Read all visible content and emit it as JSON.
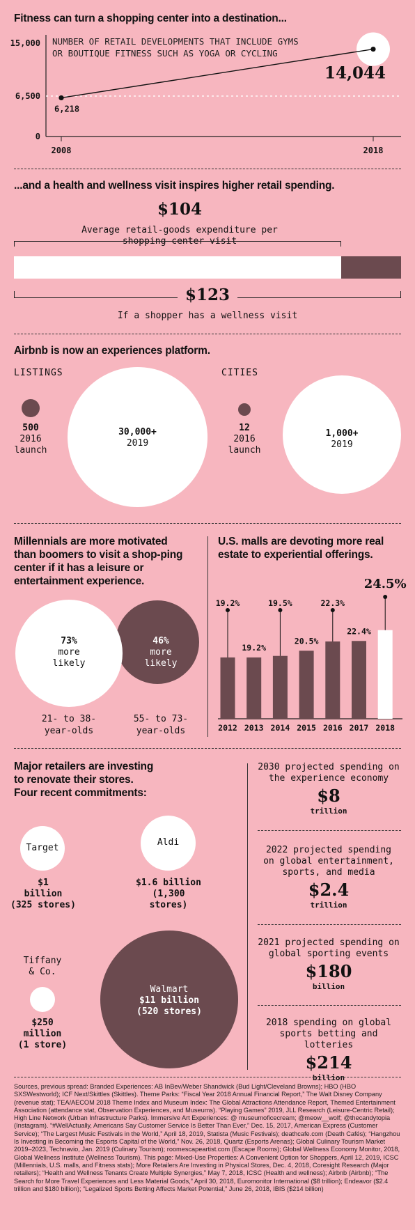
{
  "fitness": {
    "heading": "Fitness can turn a shopping center into a destination...",
    "chart_title_line1": "NUMBER OF RETAIL DEVELOPMENTS THAT INCLUDE GYMS",
    "chart_title_line2": "OR BOUTIQUE FITNESS SUCH AS YOGA OR CYCLING",
    "y_ticks": [
      "15,000",
      "6,500",
      "0"
    ],
    "x_ticks": [
      "2008",
      "2018"
    ],
    "start_label": "6,218",
    "end_label": "14,044"
  },
  "wellness": {
    "heading": "...and a health and wellness visit inspires higher retail spending.",
    "avg_value": "$104",
    "avg_caption_line1": "Average retail-goods expenditure per",
    "avg_caption_line2": "shopping center visit",
    "wellness_value": "$123",
    "wellness_caption": "If a shopper has a wellness visit"
  },
  "airbnb": {
    "heading": "Airbnb is now an experiences platform.",
    "listings_label": "LISTINGS",
    "cities_label": "CITIES",
    "listings_launch_value": "500",
    "listings_launch_year": "2016",
    "listings_launch_note": "launch",
    "listings_2019_value": "30,000+",
    "listings_2019_year": "2019",
    "cities_launch_value": "12",
    "cities_launch_year": "2016",
    "cities_launch_note": "launch",
    "cities_2019_value": "1,000+",
    "cities_2019_year": "2019"
  },
  "millennials": {
    "heading_line1": "Millennials are more motivated",
    "heading_line2": "than boomers to visit a shop-ping",
    "heading_line3": "center if it has a leisure or",
    "heading_line4": "entertainment experience.",
    "mill_pct": "73%",
    "mill_line2": "more",
    "mill_line3": "likely",
    "boom_pct": "46%",
    "boom_line2": "more",
    "boom_line3": "likely",
    "mill_age_line1": "21- to 38-",
    "mill_age_line2": "year-olds",
    "boom_age_line1": "55- to 73-",
    "boom_age_line2": "year-olds"
  },
  "malls": {
    "heading_line1": "U.S. malls are devoting more real",
    "heading_line2": "estate to experiential offerings."
  },
  "retailers": {
    "heading_line1": "Major retailers are investing",
    "heading_line2": "to renovate their stores.",
    "heading_line3": "Four recent commitments:",
    "target_name": "Target",
    "target_amount_line1": "$1",
    "target_amount_line2": "billion",
    "target_amount_line3": "(325 stores)",
    "aldi_name": "Aldi",
    "aldi_amount_line1": "$1.6 billion",
    "aldi_amount_line2": "(1,300",
    "aldi_amount_line3": "stores)",
    "tiffany_name_line1": "Tiffany",
    "tiffany_name_line2": "& Co.",
    "tiffany_amount_line1": "$250",
    "tiffany_amount_line2": "million",
    "tiffany_amount_line3": "(1 store)",
    "walmart_name": "Walmart",
    "walmart_amount_line1": "$11 billion",
    "walmart_amount_line2": "(520 stores)"
  },
  "spending": [
    {
      "caption_line1": "2030 projected spending on",
      "caption_line2": "the experience economy",
      "caption_line3": "",
      "value": "$8",
      "unit": "trillion"
    },
    {
      "caption_line1": "2022 projected spending",
      "caption_line2": "on global entertainment,",
      "caption_line3": "sports, and media",
      "value": "$2.4",
      "unit": "trillion"
    },
    {
      "caption_line1": "2021 projected spending on",
      "caption_line2": "global sporting events",
      "caption_line3": "",
      "value": "$180",
      "unit": "billion"
    },
    {
      "caption_line1": "2018 spending on global",
      "caption_line2": "sports betting and lotteries",
      "caption_line3": "",
      "value": "$214",
      "unit": "billion"
    }
  ],
  "sources": "Sources, previous spread: Branded Experiences: AB InBev/Weber Shandwick (Bud Light/Cleveland Browns); HBO (HBO SXSWestworld); ICF Next/Skittles (Skittles). Theme Parks: “Fiscal Year 2018 Annual Financial Report,” The Walt Disney Company (revenue stat); TEA/AECOM 2018 Theme Index and Museum Index: The Global Attractions Attendance Report, Themed Entertainment Association (attendance stat, Observation Experiences, and Museums). “Playing Games” 2019, JLL Research (Leisure-Centric Retail); High Line Network (Urban Infrastructure Parks). Immersive Art Experiences: @ museumoficecream; @meow__wolf; @thecandytopia (Instagram). “#WellActually, Americans Say Customer Service Is Better Than Ever,” Dec. 15, 2017, American Express (Customer Service); “The Largest Music Festivals in the World,” April 18, 2019, Statista (Music Festivals); deathcafe.com (Death Cafés); “Hangzhou Is Investing in Becoming the Esports Capital of the World,” Nov. 26, 2018, Quartz (Esports Arenas); Global Culinary Tourism Market 2019–2023, Technavio, Jan. 2019 (Culinary Tourism); roomescapeartist.com (Escape Rooms); Global Wellness Economy Monitor, 2018, Global Wellness Institute (Wellness Tourism). This page: Mixed-Use Properties: A Convenient Option for Shoppers, April 12, 2019, ICSC (Millennials, U.S. malls, and Fitness stats); More Retailers Are Investing in Physical Stores, Dec. 4, 2018, Coresight Research (Major retailers); “Health and Wellness Tenants Create Multiple Synergies,” May 7, 2018, ICSC (Health and wellness); Airbnb (Airbnb); “The Search for More Travel Experiences and Less Material Goods,” April 30, 2018, Euromonitor International ($8 trillion); Endeavor ($2.4 trillion and $180 billion); “Legalized Sports Betting Affects Market Potential,” June 26, 2018, IBIS ($214 billion)",
  "colors": {
    "background": "#f7b6bf",
    "dark": "#6b4a4f",
    "light": "#ffffff"
  },
  "chart_data": [
    {
      "type": "line",
      "title": "NUMBER OF RETAIL DEVELOPMENTS THAT INCLUDE GYMS OR BOUTIQUE FITNESS SUCH AS YOGA OR CYCLING",
      "x": [
        2008,
        2018
      ],
      "values": [
        6218,
        14044
      ],
      "ylim": [
        0,
        15000
      ],
      "yticks": [
        0,
        6500,
        15000
      ],
      "grid": "dotted line at 6,500"
    },
    {
      "type": "bar",
      "title": "Average retail-goods expenditure per shopping center visit",
      "categories": [
        "Average retail-goods expenditure per shopping center visit",
        "If a shopper has a wellness visit"
      ],
      "values": [
        104,
        123
      ],
      "unit": "$"
    },
    {
      "type": "bubble",
      "title": "Airbnb is now an experiences platform.",
      "groups": [
        {
          "name": "LISTINGS",
          "values": [
            500,
            30000
          ],
          "labels": [
            "2016 launch",
            "2019"
          ]
        },
        {
          "name": "CITIES",
          "values": [
            12,
            1000
          ],
          "labels": [
            "2016 launch",
            "2019"
          ]
        }
      ]
    },
    {
      "type": "bubble",
      "title": "Millennials are more motivated than boomers to visit a shop-ping center if it has a leisure or entertainment experience.",
      "categories": [
        "21- to 38-year-olds",
        "55- to 73-year-olds"
      ],
      "values": [
        73,
        46
      ],
      "unit": "%"
    },
    {
      "type": "bar",
      "title": "U.S. malls are devoting more real estate to experiential offerings.",
      "categories": [
        "2012",
        "2013",
        "2014",
        "2015",
        "2016",
        "2017",
        "2018"
      ],
      "values": [
        19.2,
        19.2,
        19.5,
        20.5,
        22.3,
        22.4,
        24.5
      ],
      "labels": [
        "19.2%",
        "19.2%",
        "19.5%",
        "20.5%",
        "22.3%",
        "22.4%",
        "24.5%"
      ],
      "ylim": [
        0,
        30
      ]
    },
    {
      "type": "bubble",
      "title": "Major retailers are investing to renovate their stores. Four recent commitments:",
      "categories": [
        "Target",
        "Aldi",
        "Tiffany & Co.",
        "Walmart"
      ],
      "values": [
        1,
        1.6,
        0.25,
        11
      ],
      "unit": "billion USD",
      "stores": [
        325,
        1300,
        1,
        520
      ]
    }
  ]
}
